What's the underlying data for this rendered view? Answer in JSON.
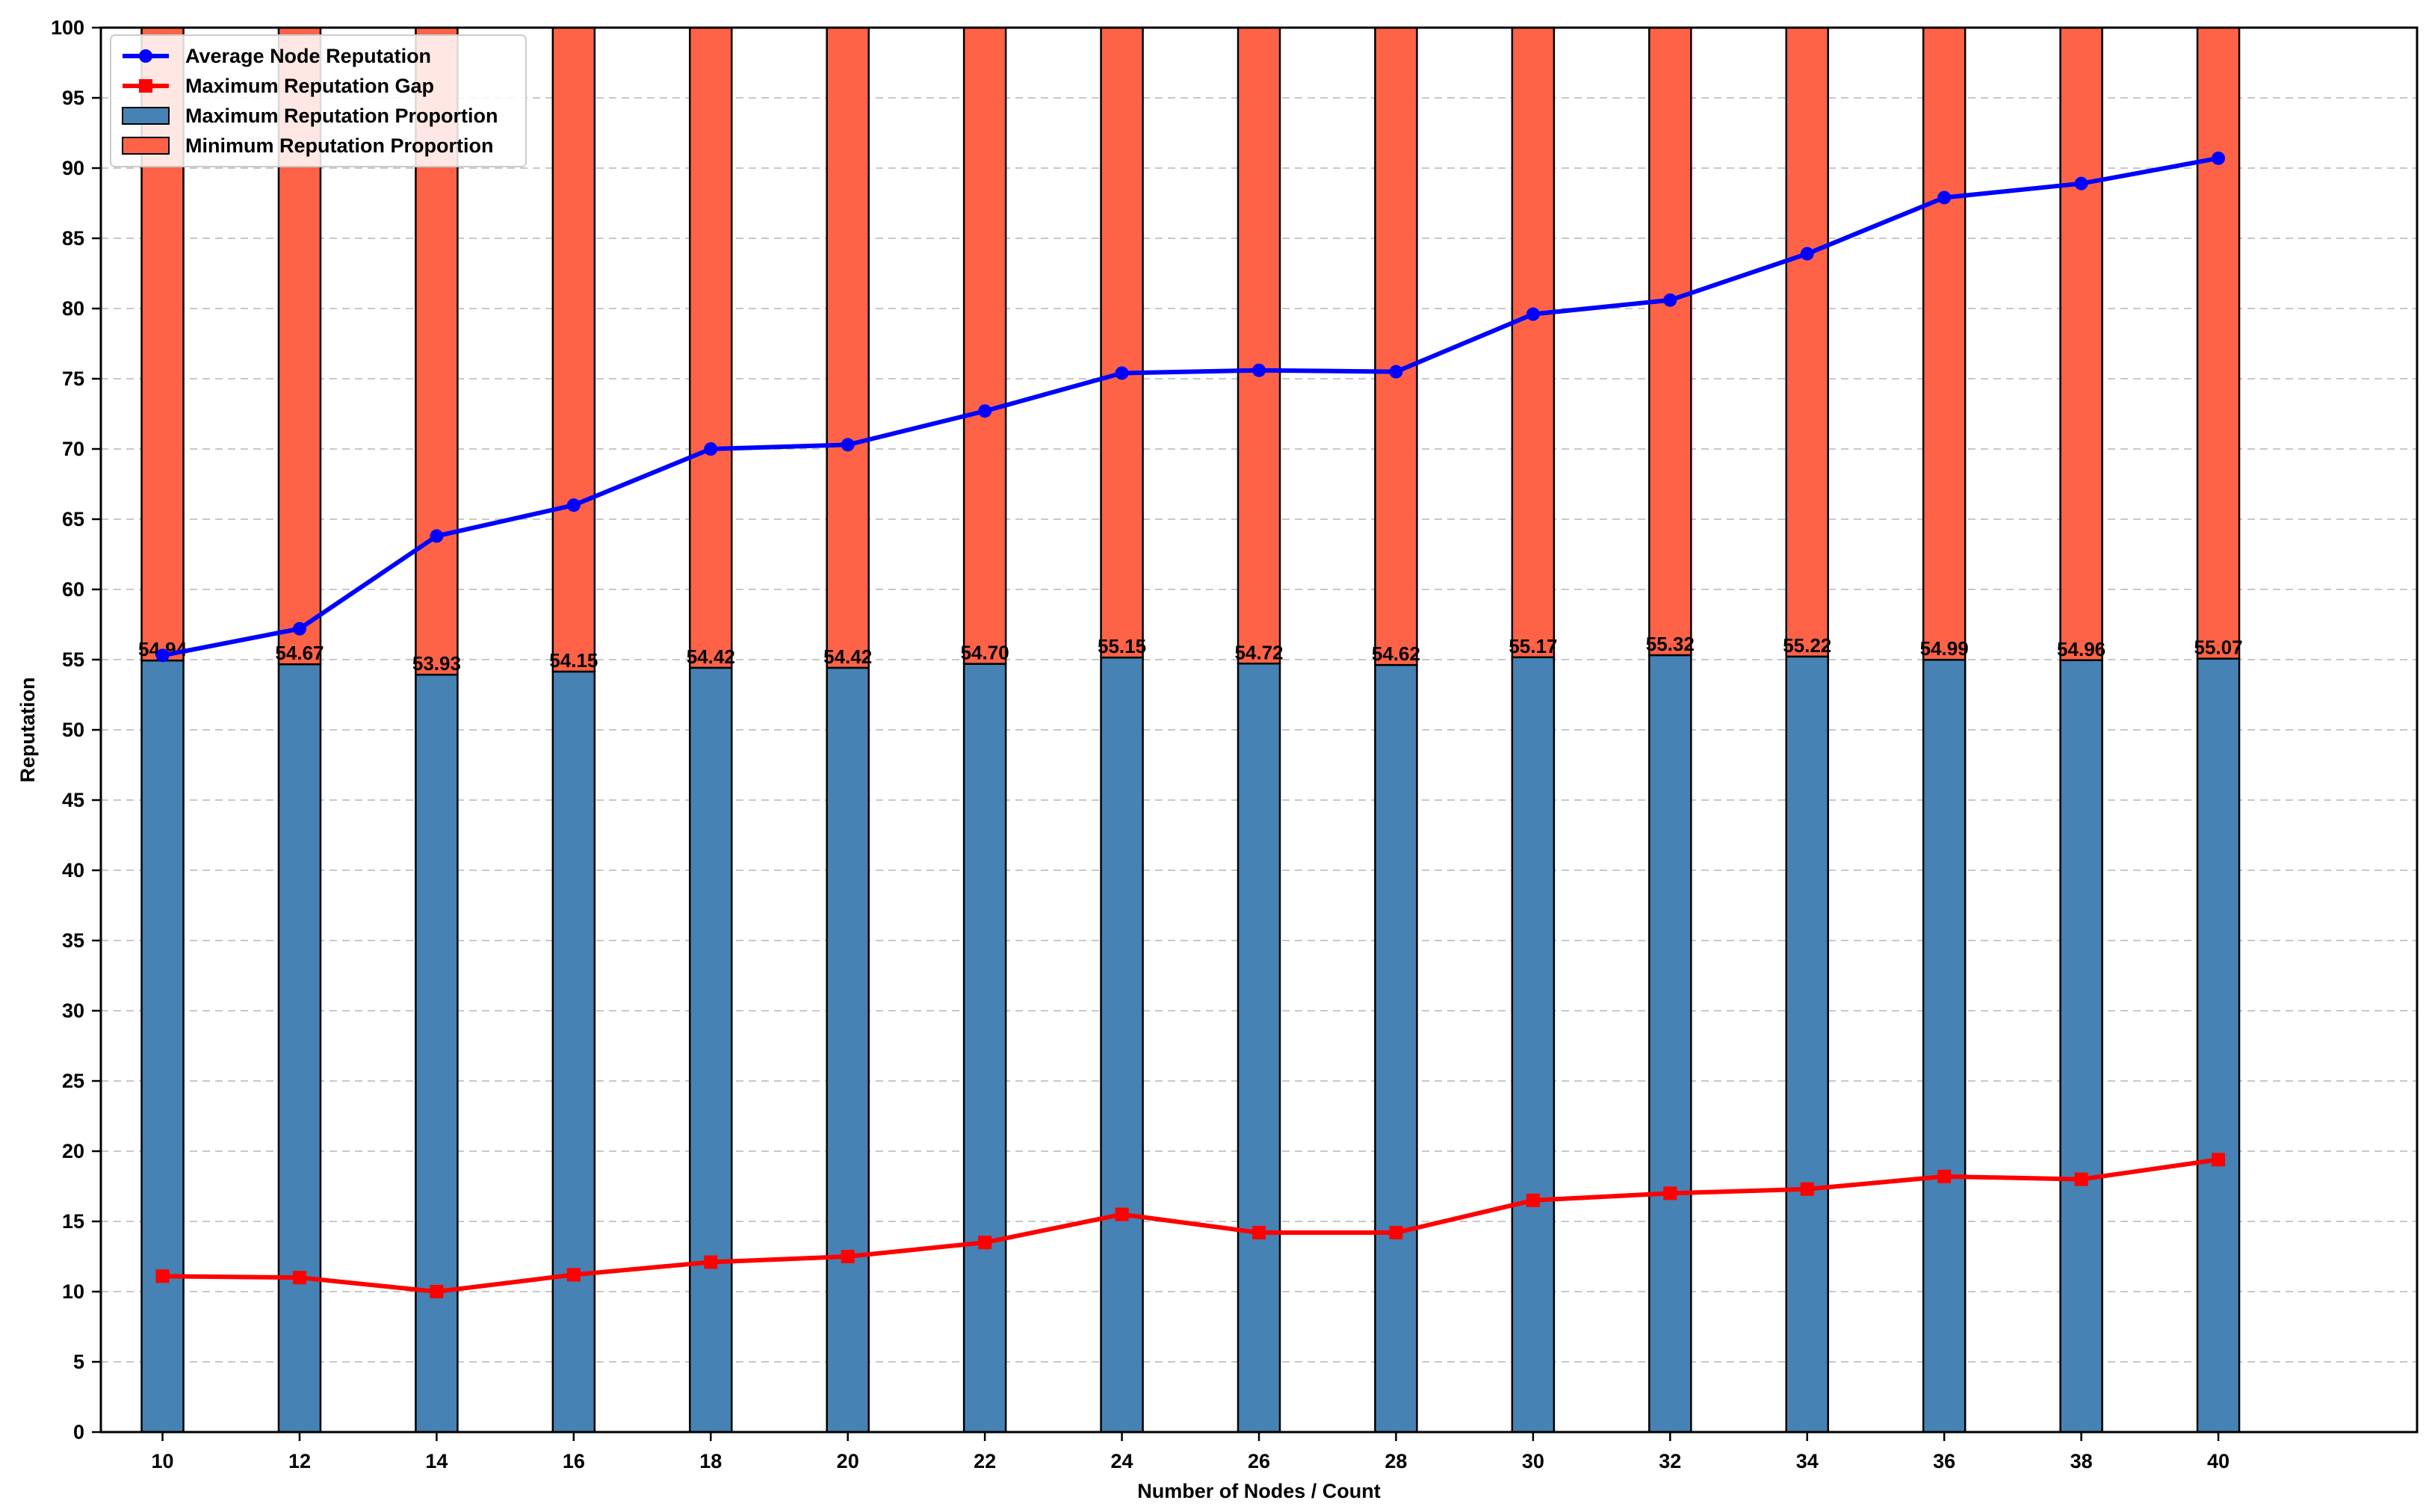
{
  "chart_data": {
    "type": "bar",
    "stacked": true,
    "xlabel": "Number of Nodes / Count",
    "ylabel": "Reputation",
    "ylim": [
      0,
      100
    ],
    "yticks": [
      0,
      5,
      10,
      15,
      20,
      25,
      30,
      35,
      40,
      45,
      50,
      55,
      60,
      65,
      70,
      75,
      80,
      85,
      90,
      95,
      100
    ],
    "categories": [
      "10",
      "12",
      "14",
      "16",
      "18",
      "20",
      "22",
      "24",
      "26",
      "28",
      "30",
      "32",
      "34",
      "36",
      "38",
      "40"
    ],
    "grid": "horizontal dashed",
    "legend_position": "top-left",
    "series": [
      {
        "name": "Maximum Reputation Proportion",
        "kind": "bar",
        "color": "#4682B4",
        "values": [
          54.94,
          54.67,
          53.93,
          54.15,
          54.42,
          54.42,
          54.7,
          55.15,
          54.72,
          54.62,
          55.17,
          55.32,
          55.22,
          54.99,
          54.96,
          55.07
        ],
        "data_labels": [
          "54.94",
          "54.67",
          "53.93",
          "54.15",
          "54.42",
          "54.42",
          "54.70",
          "55.15",
          "54.72",
          "54.62",
          "55.17",
          "55.32",
          "55.22",
          "54.99",
          "54.96",
          "55.07"
        ]
      },
      {
        "name": "Minimum Reputation Proportion",
        "kind": "bar",
        "color": "#FF6347",
        "values": [
          45.06,
          45.33,
          46.07,
          45.85,
          45.58,
          45.58,
          45.3,
          44.85,
          45.28,
          45.38,
          44.83,
          44.68,
          44.78,
          45.01,
          45.04,
          44.93
        ]
      },
      {
        "name": "Average Node Reputation",
        "kind": "line",
        "marker": "circle",
        "color": "#0000FF",
        "values": [
          55.3,
          57.2,
          63.8,
          66.0,
          70.0,
          70.3,
          72.7,
          75.4,
          75.6,
          75.5,
          79.6,
          80.6,
          83.9,
          87.9,
          88.9,
          90.7
        ]
      },
      {
        "name": "Maximum Reputation Gap",
        "kind": "line",
        "marker": "square",
        "color": "#FF0000",
        "values": [
          11.1,
          11.0,
          10.0,
          11.2,
          12.1,
          12.5,
          13.5,
          15.5,
          14.2,
          14.2,
          16.5,
          17.0,
          17.3,
          18.2,
          18.0,
          19.4
        ]
      }
    ],
    "legend": [
      {
        "label": "Average Node Reputation",
        "symbol": "line-circle",
        "color": "#0000FF"
      },
      {
        "label": "Maximum Reputation Gap",
        "symbol": "line-square",
        "color": "#FF0000"
      },
      {
        "label": "Maximum Reputation Proportion",
        "symbol": "patch",
        "color": "#4682B4"
      },
      {
        "label": "Minimum Reputation Proportion",
        "symbol": "patch",
        "color": "#FF6347"
      }
    ]
  }
}
